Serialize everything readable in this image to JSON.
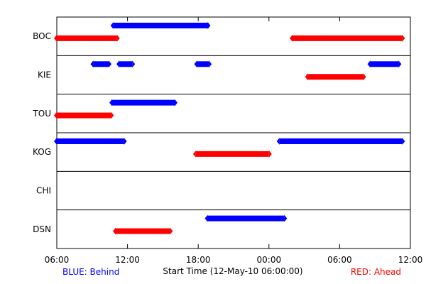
{
  "chart_data": {
    "type": "timeline",
    "xlabel": "Start Time (12-May-10 06:00:00)",
    "x_ticks": [
      "06:00",
      "12:00",
      "18:00",
      "00:00",
      "06:00",
      "12:00"
    ],
    "x_range_hours": [
      0,
      30
    ],
    "stations": [
      "BOC",
      "KIE",
      "TOU",
      "KOG",
      "CHI",
      "DSN"
    ],
    "legend": {
      "behind": {
        "label": "BLUE: Behind",
        "color": "#0000ff"
      },
      "ahead": {
        "label": "RED: Ahead",
        "color": "#ff0000"
      }
    },
    "segments": [
      {
        "station": "BOC",
        "kind": "behind",
        "start": 4.8,
        "end": 12.8
      },
      {
        "station": "BOC",
        "kind": "ahead",
        "start": 0.0,
        "end": 5.1
      },
      {
        "station": "BOC",
        "kind": "ahead",
        "start": 20.0,
        "end": 29.3
      },
      {
        "station": "KIE",
        "kind": "behind",
        "start": 3.1,
        "end": 4.4
      },
      {
        "station": "KIE",
        "kind": "behind",
        "start": 5.3,
        "end": 6.4
      },
      {
        "station": "KIE",
        "kind": "behind",
        "start": 11.9,
        "end": 12.9
      },
      {
        "station": "KIE",
        "kind": "behind",
        "start": 26.6,
        "end": 29.0
      },
      {
        "station": "KIE",
        "kind": "ahead",
        "start": 21.3,
        "end": 26.0
      },
      {
        "station": "TOU",
        "kind": "behind",
        "start": 4.7,
        "end": 10.0
      },
      {
        "station": "TOU",
        "kind": "ahead",
        "start": 0.0,
        "end": 4.6
      },
      {
        "station": "KOG",
        "kind": "behind",
        "start": 0.0,
        "end": 5.7
      },
      {
        "station": "KOG",
        "kind": "behind",
        "start": 18.9,
        "end": 29.3
      },
      {
        "station": "KOG",
        "kind": "ahead",
        "start": 11.8,
        "end": 18.0
      },
      {
        "station": "DSN",
        "kind": "behind",
        "start": 12.8,
        "end": 19.3
      },
      {
        "station": "DSN",
        "kind": "ahead",
        "start": 5.0,
        "end": 9.6
      }
    ]
  }
}
